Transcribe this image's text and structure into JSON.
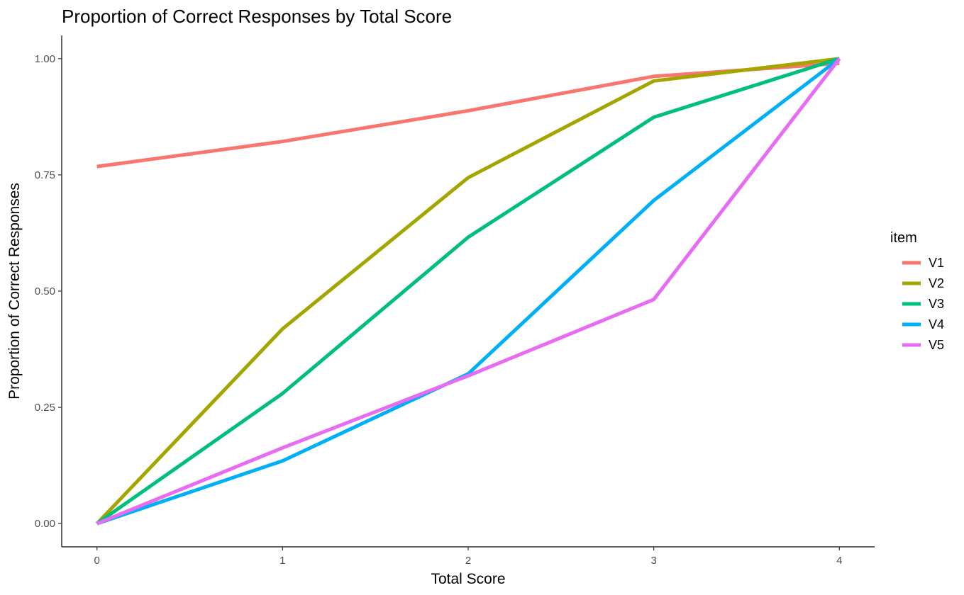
{
  "chart_data": {
    "type": "line",
    "title": "Proportion of Correct Responses by Total Score",
    "xlabel": "Total Score",
    "ylabel": "Proportion of Correct Responses",
    "x": [
      0,
      1,
      2,
      3,
      4
    ],
    "x_ticks": [
      "0",
      "1",
      "2",
      "3",
      "4"
    ],
    "y_ticks": [
      "0.00",
      "0.25",
      "0.50",
      "0.75",
      "1.00"
    ],
    "xlim": [
      -0.19,
      4.19
    ],
    "ylim": [
      -0.05,
      1.05
    ],
    "grid": false,
    "legend": {
      "title": "item",
      "position": "right"
    },
    "series": [
      {
        "name": "V1",
        "color": "#F8766D",
        "values": [
          0.768,
          0.822,
          0.888,
          0.962,
          0.99
        ]
      },
      {
        "name": "V2",
        "color": "#A3A500",
        "values": [
          0.0,
          0.419,
          0.744,
          0.952,
          1.0
        ]
      },
      {
        "name": "V3",
        "color": "#00BF7D",
        "values": [
          0.0,
          0.28,
          0.616,
          0.874,
          1.0
        ]
      },
      {
        "name": "V4",
        "color": "#00B0F6",
        "values": [
          0.0,
          0.135,
          0.322,
          0.695,
          1.0
        ]
      },
      {
        "name": "V5",
        "color": "#E76BF3",
        "values": [
          0.0,
          0.163,
          0.318,
          0.482,
          1.0
        ]
      }
    ]
  }
}
